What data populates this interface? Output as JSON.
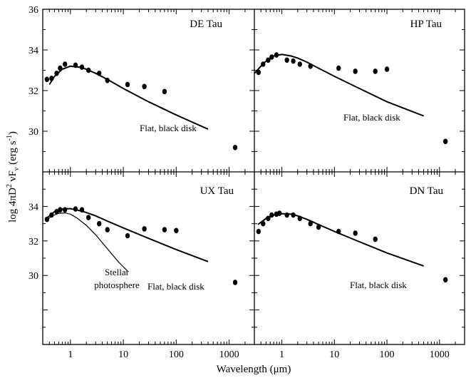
{
  "figure": {
    "xlabel_prefix": "Wavelength (",
    "xlabel_unit": "μm",
    "xlabel_suffix": ")",
    "ylabel_main": "log 4πD",
    "ylabel_sup1": "2",
    "ylabel_mid": " νF",
    "ylabel_sub": "ν",
    "ylabel_paren": " (erg s",
    "ylabel_sup2": "-1",
    "ylabel_close": ")"
  },
  "chart_data": [
    {
      "type": "scatter",
      "title": "DE Tau",
      "xscale": "log",
      "xlim": [
        0.3,
        3000
      ],
      "ylim": [
        28,
        36
      ],
      "xticks": [
        1,
        10,
        100,
        1000
      ],
      "xtick_labels": [
        "1",
        "10",
        "100",
        "1000"
      ],
      "yticks": [
        30,
        32,
        34,
        36
      ],
      "ytick_labels": [
        "30",
        "32",
        "34",
        "36"
      ],
      "points": {
        "x": [
          0.36,
          0.44,
          0.55,
          0.64,
          0.79,
          1.25,
          1.65,
          2.2,
          3.5,
          5.0,
          12,
          25,
          60,
          1300
        ],
        "y": [
          32.55,
          32.6,
          32.85,
          33.1,
          33.3,
          33.25,
          33.15,
          33.0,
          32.85,
          32.5,
          32.3,
          32.2,
          31.95,
          29.2
        ]
      },
      "model": {
        "label": "Flat, black disk",
        "x": [
          0.4,
          0.5,
          0.7,
          1.0,
          1.5,
          2.0,
          3.0,
          5.0,
          10,
          30,
          100,
          400
        ],
        "y": [
          32.3,
          32.7,
          33.05,
          33.2,
          33.15,
          33.05,
          32.85,
          32.55,
          32.1,
          31.45,
          30.8,
          30.1
        ]
      }
    },
    {
      "type": "scatter",
      "title": "HP Tau",
      "xscale": "log",
      "xlim": [
        0.3,
        3000
      ],
      "ylim": [
        28,
        36
      ],
      "xticks": [
        1,
        10,
        100,
        1000
      ],
      "xtick_labels": [
        "1",
        "10",
        "100",
        "1000"
      ],
      "points": {
        "x": [
          0.36,
          0.44,
          0.55,
          0.64,
          0.79,
          1.25,
          1.65,
          2.2,
          3.5,
          12,
          25,
          60,
          100,
          1300
        ],
        "y": [
          32.9,
          33.3,
          33.5,
          33.65,
          33.75,
          33.5,
          33.45,
          33.3,
          33.2,
          33.1,
          32.95,
          32.95,
          33.05,
          29.5
        ]
      },
      "model": {
        "label": "Flat, black disk",
        "x": [
          0.3,
          0.4,
          0.5,
          0.7,
          1.0,
          1.5,
          2.0,
          3.0,
          5.0,
          10,
          30,
          100,
          500
        ],
        "y": [
          32.85,
          33.2,
          33.45,
          33.7,
          33.78,
          33.7,
          33.6,
          33.4,
          33.1,
          32.7,
          32.1,
          31.45,
          30.75
        ]
      }
    },
    {
      "type": "scatter",
      "title": "UX Tau",
      "xscale": "log",
      "xlim": [
        0.3,
        3000
      ],
      "ylim": [
        26,
        36
      ],
      "xticks": [
        1,
        10,
        100,
        1000
      ],
      "xtick_labels": [
        "1",
        "10",
        "100",
        "1000"
      ],
      "yticks": [
        30,
        32,
        34
      ],
      "ytick_labels": [
        "30",
        "32",
        "34"
      ],
      "points": {
        "x": [
          0.36,
          0.44,
          0.55,
          0.64,
          0.79,
          1.25,
          1.65,
          2.2,
          3.5,
          5.0,
          12,
          25,
          60,
          100,
          1300
        ],
        "y": [
          33.25,
          33.5,
          33.7,
          33.8,
          33.8,
          33.85,
          33.8,
          33.35,
          33.0,
          32.65,
          32.3,
          32.7,
          32.65,
          32.6,
          29.6
        ]
      },
      "model": {
        "label": "Flat, black disk",
        "x": [
          0.35,
          0.5,
          0.7,
          1.0,
          1.5,
          2.0,
          3.0,
          5.0,
          10,
          30,
          100,
          400
        ],
        "y": [
          33.3,
          33.7,
          33.85,
          33.87,
          33.75,
          33.65,
          33.45,
          33.15,
          32.75,
          32.15,
          31.5,
          30.8
        ]
      },
      "photosphere": {
        "label_line1": "Stellar",
        "label_line2": "photosphere",
        "x": [
          0.35,
          0.45,
          0.6,
          0.8,
          1.0,
          1.3,
          2.0,
          3.0,
          5.0,
          8.0,
          12
        ],
        "y": [
          33.2,
          33.45,
          33.6,
          33.62,
          33.55,
          33.35,
          32.9,
          32.35,
          31.55,
          30.8,
          30.25
        ]
      }
    },
    {
      "type": "scatter",
      "title": "DN Tau",
      "xscale": "log",
      "xlim": [
        0.3,
        3000
      ],
      "ylim": [
        26,
        36
      ],
      "xticks": [
        1,
        10,
        100,
        1000
      ],
      "xtick_labels": [
        "1",
        "10",
        "100",
        "1000"
      ],
      "points": {
        "x": [
          0.36,
          0.44,
          0.55,
          0.64,
          0.79,
          0.9,
          1.25,
          1.65,
          2.2,
          3.5,
          5.0,
          12,
          25,
          60,
          1300
        ],
        "y": [
          32.55,
          33.0,
          33.3,
          33.5,
          33.55,
          33.6,
          33.5,
          33.5,
          33.3,
          33.0,
          32.8,
          32.55,
          32.45,
          32.1,
          29.75
        ]
      },
      "model": {
        "label": "Flat, black disk",
        "x": [
          0.35,
          0.5,
          0.7,
          1.0,
          1.5,
          2.0,
          3.0,
          5.0,
          10,
          30,
          100,
          500
        ],
        "y": [
          32.95,
          33.3,
          33.5,
          33.58,
          33.55,
          33.45,
          33.25,
          32.95,
          32.55,
          31.95,
          31.3,
          30.55
        ]
      }
    }
  ]
}
